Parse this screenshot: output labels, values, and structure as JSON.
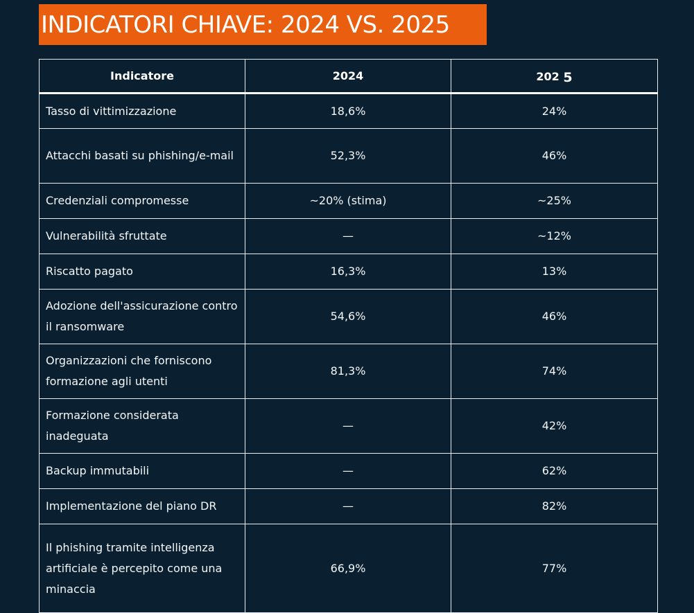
{
  "title": "INDICATORI CHIAVE: 2024 VS. 2025",
  "table": {
    "headers": [
      "Indicatore",
      "2024",
      "202",
      "5"
    ],
    "rows": [
      {
        "indicator": "Tasso di vittimizzazione",
        "y2024": "18,6%",
        "y2025": "24%",
        "lines": 1
      },
      {
        "indicator": "Attacchi basati su phishing/e-mail",
        "y2024": "52,3%",
        "y2025": "46%",
        "lines": 2
      },
      {
        "indicator": "Credenziali compromesse",
        "y2024": "~20% (stima)",
        "y2025": "~25%",
        "lines": 1
      },
      {
        "indicator": "Vulnerabilità sfruttate",
        "y2024": "—",
        "y2025": "~12%",
        "lines": 1
      },
      {
        "indicator": "Riscatto pagato",
        "y2024": "16,3%",
        "y2025": "13%",
        "lines": 1
      },
      {
        "indicator": "Adozione dell'assicurazione contro il ransomware",
        "y2024": "54,6%",
        "y2025": "46%",
        "lines": 2
      },
      {
        "indicator": "Organizzazioni che forniscono formazione agli utenti",
        "y2024": "81,3%",
        "y2025": "74%",
        "lines": 2
      },
      {
        "indicator": "Formazione considerata inadeguata",
        "y2024": "—",
        "y2025": "42%",
        "lines": 2
      },
      {
        "indicator": "Backup immutabili",
        "y2024": "—",
        "y2025": "62%",
        "lines": 1
      },
      {
        "indicator": "Implementazione del piano DR",
        "y2024": "—",
        "y2025": "82%",
        "lines": 1
      },
      {
        "indicator": "Il phishing tramite intelligenza artificiale è percepito come una minaccia",
        "y2024": "66,9%",
        "y2025": "77%",
        "lines": 3
      }
    ]
  },
  "colors": {
    "background": "#0a1f2f",
    "title_background": "#ea5f0f",
    "text": "#ffffff",
    "border": "#e8eef3"
  }
}
